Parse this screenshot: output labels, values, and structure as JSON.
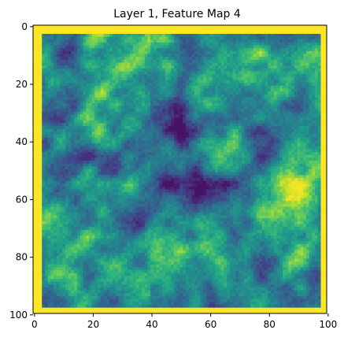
{
  "chart_data": {
    "type": "heatmap",
    "title": "Layer 1, Feature Map 4",
    "xlabel": "",
    "ylabel": "",
    "xlim": [
      -0.5,
      99.5
    ],
    "ylim": [
      99.5,
      -0.5
    ],
    "y_axis_inverted": true,
    "grid": false,
    "colormap": "viridis",
    "grid_size": [
      100,
      100
    ],
    "active_region": {
      "x": [
        3,
        97
      ],
      "y": [
        3,
        97
      ]
    },
    "x_ticks": [
      0,
      20,
      40,
      60,
      80,
      100
    ],
    "y_ticks": [
      0,
      20,
      40,
      60,
      80,
      100
    ],
    "x_tick_labels": [
      "0",
      "20",
      "40",
      "60",
      "80",
      "100"
    ],
    "y_tick_labels": [
      "0",
      "20",
      "40",
      "60",
      "80",
      "100"
    ],
    "border_value": 1.0,
    "colors": {
      "viridis_stops": [
        "#440154",
        "#482878",
        "#3e4989",
        "#31688e",
        "#26828e",
        "#1f9e89",
        "#35b779",
        "#6ece58",
        "#b5de2b",
        "#fde725"
      ],
      "border": "#fde725",
      "base": "#21918c"
    }
  }
}
